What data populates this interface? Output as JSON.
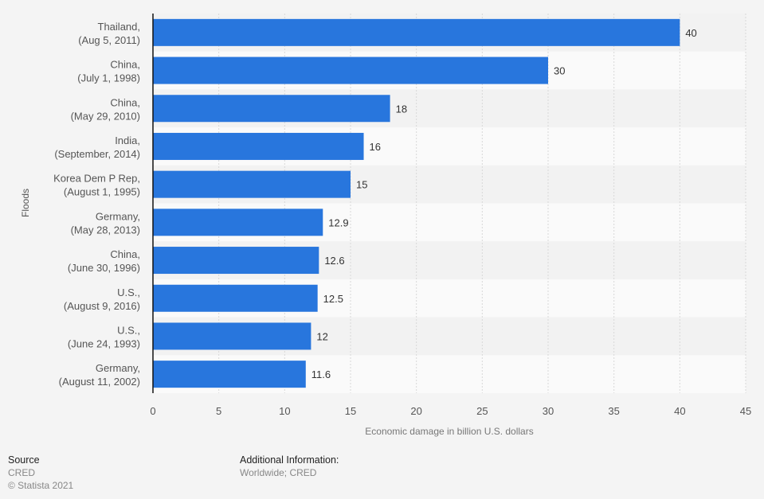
{
  "chart_data": {
    "type": "bar",
    "orientation": "horizontal",
    "categories": [
      [
        "Thailand,",
        "(Aug 5, 2011)"
      ],
      [
        "China,",
        "(July 1, 1998)"
      ],
      [
        "China,",
        "(May 29, 2010)"
      ],
      [
        "India,",
        "(September, 2014)"
      ],
      [
        "Korea Dem P Rep,",
        "(August 1, 1995)"
      ],
      [
        "Germany,",
        "(May 28, 2013)"
      ],
      [
        "China,",
        "(June 30, 1996)"
      ],
      [
        "U.S.,",
        "(August 9, 2016)"
      ],
      [
        "U.S.,",
        "(June 24, 1993)"
      ],
      [
        "Germany,",
        "(August 11, 2002)"
      ]
    ],
    "values": [
      40,
      30,
      18,
      16,
      15,
      12.9,
      12.6,
      12.5,
      12,
      11.6
    ],
    "value_labels": [
      "40",
      "30",
      "18",
      "16",
      "15",
      "12.9",
      "12.6",
      "12.5",
      "12",
      "11.6"
    ],
    "xlabel": "Economic damage in billion U.S. dollars",
    "ylabel": "Floods",
    "xlim": [
      0,
      45
    ],
    "xticks": [
      0,
      5,
      10,
      15,
      20,
      25,
      30,
      35,
      40,
      45
    ],
    "grid": true,
    "bar_color": "#2876dd"
  },
  "footer": {
    "source_title": "Source",
    "source": "CRED",
    "copyright": "© Statista 2021",
    "additional_title": "Additional Information:",
    "additional": "Worldwide; CRED"
  }
}
